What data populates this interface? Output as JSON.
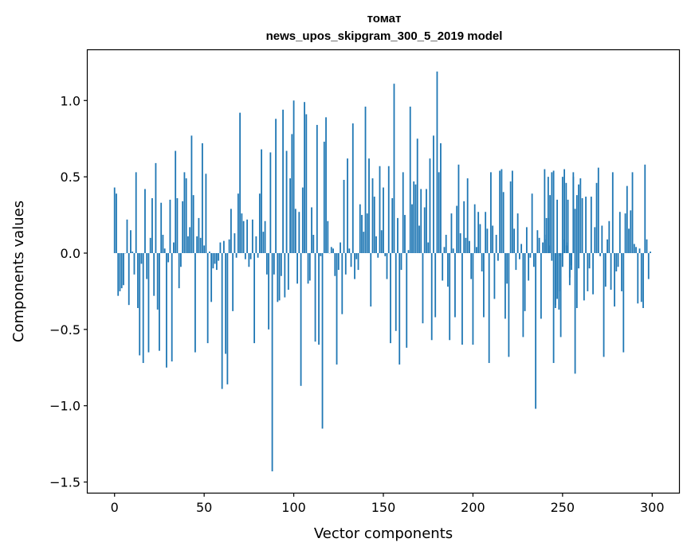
{
  "chart_data": {
    "type": "bar",
    "title": "томат",
    "subtitle": "news_upos_skipgram_300_5_2019 model",
    "xlabel": "Vector components",
    "ylabel": "Components values",
    "xlim": [
      -15,
      315
    ],
    "ylim": [
      -1.57,
      1.33
    ],
    "xticks": [
      0,
      50,
      100,
      150,
      200,
      250,
      300
    ],
    "xtick_labels": [
      "0",
      "50",
      "100",
      "150",
      "200",
      "250",
      "300"
    ],
    "yticks": [
      -1.5,
      -1.0,
      -0.5,
      0.0,
      0.5,
      1.0
    ],
    "ytick_labels": [
      "−1.5",
      "−1.0",
      "−0.5",
      "0.0",
      "0.5",
      "1.0"
    ],
    "grid": false,
    "bar_color": "#1f77b4",
    "series": [
      {
        "x_start": 0,
        "values": [
          0.43,
          0.39,
          -0.28,
          -0.25,
          -0.23,
          -0.21,
          0.0,
          0.22,
          -0.34,
          0.15,
          0.01,
          -0.14,
          0.53,
          -0.36,
          -0.67,
          -0.07,
          -0.72,
          0.42,
          -0.17,
          -0.65,
          0.1,
          0.36,
          -0.28,
          0.59,
          -0.37,
          -0.64,
          0.33,
          0.12,
          0.03,
          -0.75,
          -0.06,
          0.35,
          -0.71,
          0.07,
          0.67,
          0.36,
          -0.23,
          -0.09,
          0.34,
          0.53,
          0.49,
          0.11,
          0.17,
          0.77,
          0.38,
          -0.65,
          0.11,
          0.23,
          0.1,
          0.72,
          0.05,
          0.52,
          -0.59,
          0.01,
          -0.32,
          -0.1,
          -0.07,
          -0.11,
          -0.05,
          0.07,
          -0.89,
          0.08,
          -0.66,
          -0.86,
          0.09,
          0.29,
          -0.38,
          0.13,
          -0.03,
          0.39,
          0.92,
          0.26,
          0.21,
          -0.04,
          0.22,
          -0.09,
          -0.04,
          0.22,
          -0.59,
          0.11,
          -0.03,
          0.39,
          0.68,
          0.14,
          0.21,
          -0.14,
          -0.5,
          0.66,
          -1.43,
          -0.14,
          0.88,
          -0.32,
          -0.31,
          -0.15,
          0.94,
          -0.29,
          0.67,
          -0.24,
          0.49,
          0.78,
          1.0,
          0.29,
          -0.2,
          0.27,
          -0.87,
          0.43,
          0.99,
          0.91,
          -0.2,
          -0.18,
          0.3,
          0.12,
          -0.58,
          0.84,
          -0.6,
          -0.02,
          -1.15,
          0.73,
          0.89,
          0.21,
          0.0,
          0.04,
          0.03,
          -0.15,
          -0.73,
          -0.11,
          0.07,
          -0.4,
          0.48,
          -0.14,
          0.62,
          0.03,
          -0.09,
          0.85,
          -0.17,
          -0.04,
          -0.11,
          0.32,
          0.25,
          0.14,
          0.96,
          0.26,
          0.62,
          -0.35,
          0.49,
          0.37,
          0.11,
          -0.03,
          0.57,
          0.15,
          0.43,
          -0.02,
          -0.17,
          0.57,
          -0.59,
          0.36,
          1.11,
          -0.51,
          0.23,
          -0.73,
          -0.11,
          0.53,
          0.25,
          -0.62,
          0.02,
          0.96,
          0.32,
          0.47,
          0.45,
          0.75,
          0.18,
          0.42,
          -0.46,
          0.3,
          0.42,
          0.07,
          0.62,
          -0.57,
          0.77,
          -0.42,
          1.19,
          0.53,
          0.72,
          -0.18,
          0.04,
          0.12,
          -0.22,
          -0.57,
          0.26,
          0.03,
          -0.42,
          0.31,
          0.58,
          0.13,
          -0.6,
          0.34,
          0.1,
          0.49,
          0.08,
          -0.17,
          -0.6,
          0.32,
          0.04,
          0.27,
          0.19,
          -0.12,
          -0.42,
          0.27,
          0.16,
          -0.72,
          0.53,
          0.18,
          -0.3,
          0.12,
          -0.05,
          0.54,
          0.55,
          0.4,
          -0.43,
          -0.2,
          -0.68,
          0.47,
          0.54,
          0.16,
          -0.11,
          0.26,
          -0.04,
          0.06,
          -0.55,
          -0.38,
          0.17,
          -0.18,
          -0.03,
          0.39,
          -0.09,
          -1.02,
          0.15,
          0.1,
          -0.43,
          0.07,
          0.55,
          0.23,
          0.23,
          0.05,
          -0.05,
          -0.72,
          -0.36,
          -0.3,
          -0.25,
          -0.55,
          -0.09,
          0.09,
          0.05,
          0.07,
          -0.16,
          -0.08,
          0.53,
          0.29,
          -0.36,
          -0.1
        ]
      },
      {
        "x_start": 240,
        "values": [
          0.09,
          0.12,
          0.5,
          0.38,
          0.53,
          0.54,
          -0.34,
          0.35,
          -0.37,
          -0.02,
          0.5,
          0.55,
          0.46,
          0.35,
          -0.21,
          -0.11,
          0.5,
          -0.79,
          0.38,
          0.45,
          0.49,
          0.36,
          -0.31,
          0.37,
          -0.25,
          -0.1,
          0.37,
          -0.27,
          0.17,
          0.46,
          0.56,
          -0.02,
          0.18,
          -0.68,
          -0.22,
          0.09,
          0.21,
          -0.24,
          0.53,
          -0.35,
          -0.12,
          -0.09,
          0.27,
          -0.25,
          -0.65,
          0.26,
          0.44,
          0.16,
          0.28,
          0.53,
          0.06,
          0.04,
          -0.33,
          0.03,
          -0.32,
          -0.36,
          0.58,
          0.09,
          -0.17,
          0.01
        ]
      }
    ]
  }
}
